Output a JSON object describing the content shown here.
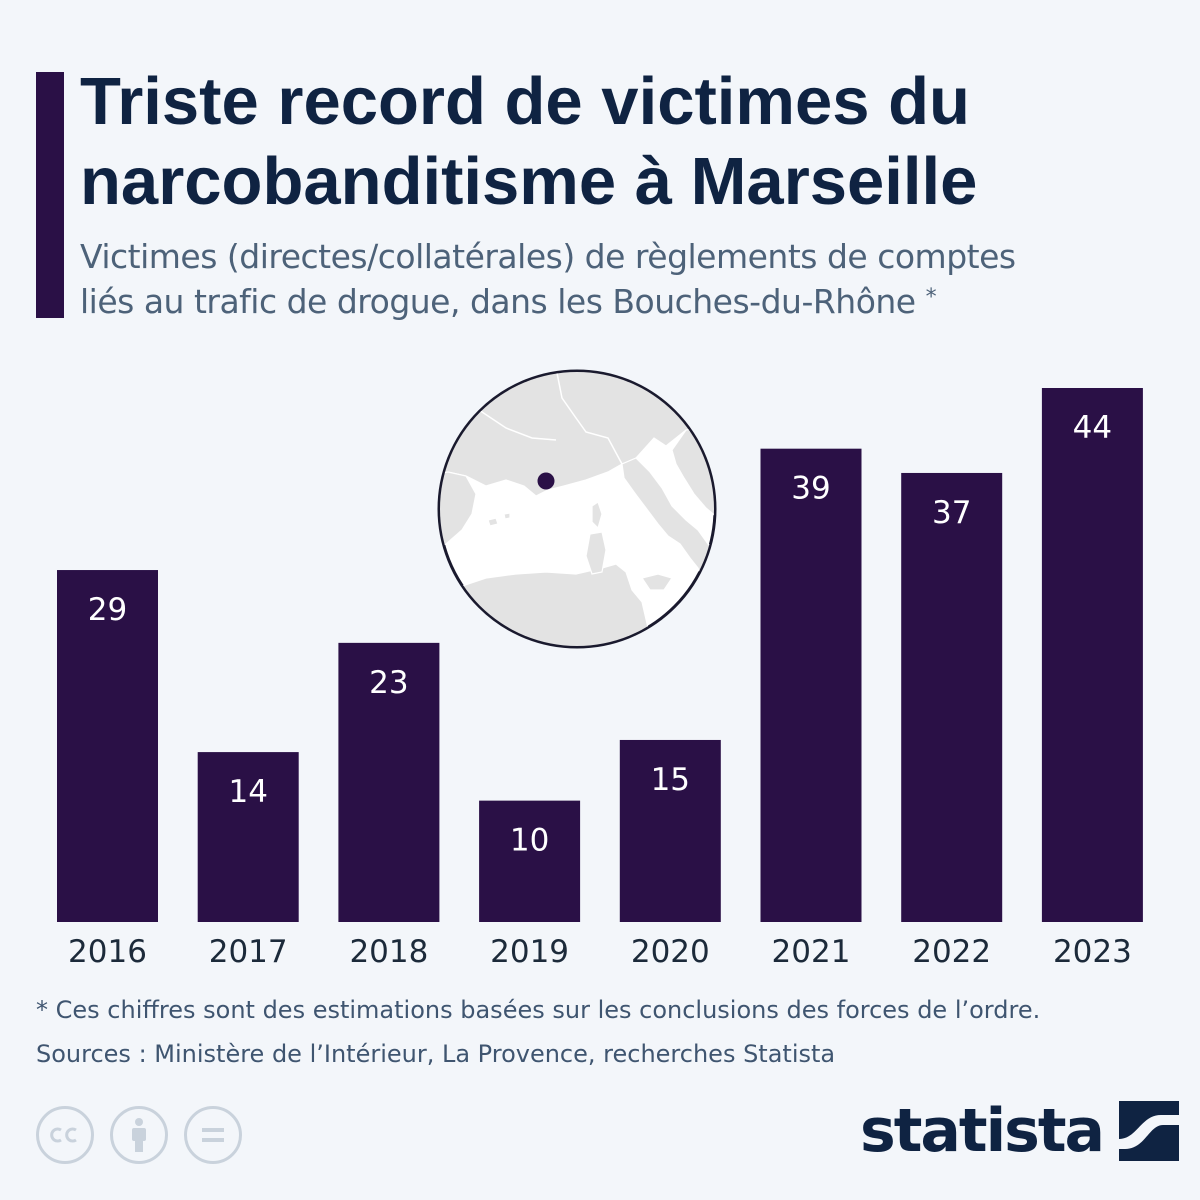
{
  "header": {
    "title_line1": "Triste record de victimes du",
    "title_line2": "narcobanditisme à Marseille",
    "subtitle_line1": "Victimes (directes/collatérales) de règlements de comptes",
    "subtitle_line2": "liés au trafic de drogue, dans les Bouches-du-Rhône",
    "subtitle_mark": "*"
  },
  "chart_data": {
    "type": "bar",
    "categories": [
      "2016",
      "2017",
      "2018",
      "2019",
      "2020",
      "2021",
      "2022",
      "2023"
    ],
    "values": [
      29,
      14,
      23,
      10,
      15,
      39,
      37,
      44
    ],
    "title": "Triste record de victimes du narcobanditisme à Marseille",
    "xlabel": "",
    "ylabel": "",
    "ylim": [
      0,
      44
    ],
    "grid": false,
    "legend": "none",
    "data_labels": "inside-top",
    "bar_color": "#2a1046",
    "label_color": "#ffffff"
  },
  "map_inset": {
    "region": "Western Mediterranean",
    "marker": "Marseille",
    "land_color": "#e2e2e2",
    "sea_color": "#ffffff",
    "marker_color": "#2a1046"
  },
  "footer": {
    "note": "* Ces chiffres sont des estimations basées sur les conclusions des forces de l’ordre.",
    "sources": "Sources : Ministère de l’Intérieur, La Provence, recherches Statista",
    "license_icons": [
      "cc-icon",
      "attribution-icon",
      "no-derivatives-icon"
    ],
    "brand": "statista"
  },
  "colors": {
    "background": "#f3f6fa",
    "title": "#0f2342",
    "subtitle": "#4d6279",
    "accent": "#2a1046"
  }
}
